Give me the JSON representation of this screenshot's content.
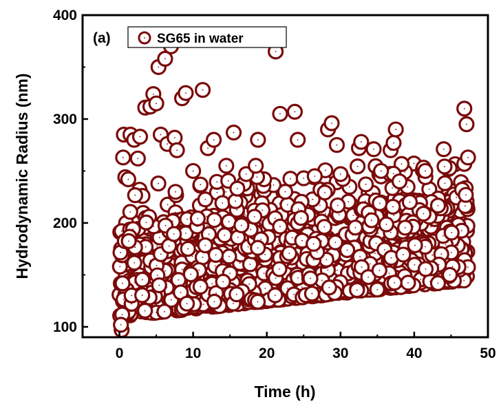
{
  "chart_data": {
    "type": "scatter",
    "panel_label": "(a)",
    "xlabel": "Time (h)",
    "ylabel": "Hydrodynamic Radius (nm)",
    "xlim": [
      -5,
      50
    ],
    "ylim": [
      90,
      400
    ],
    "xticks": [
      0,
      10,
      20,
      30,
      40,
      50
    ],
    "yticks": [
      100,
      200,
      300,
      400
    ],
    "legend": {
      "position": "top-left",
      "entries": [
        "SG65 in water"
      ]
    },
    "marker": {
      "shape": "open-circle",
      "color": "#7a0a0a"
    },
    "series": [
      {
        "name": "SG65 in water",
        "description": "dense cloud of repeated DLS measurements; baseline rises from ~120 nm at t=0 to ~160 nm at t=47 h with outliers up to ~370 nm",
        "time_range": [
          0,
          47.3
        ],
        "band_low_start": 110,
        "band_low_end": 145,
        "band_high_start": 200,
        "band_high_end": 230,
        "outliers": [
          [
            0.3,
            97
          ],
          [
            0.2,
            102
          ],
          [
            0.5,
            263
          ],
          [
            0.6,
            285
          ],
          [
            0.8,
            244
          ],
          [
            1.2,
            242
          ],
          [
            1.5,
            285
          ],
          [
            2.0,
            280
          ],
          [
            2.5,
            262
          ],
          [
            2.8,
            283
          ],
          [
            3.5,
            311
          ],
          [
            4.2,
            312
          ],
          [
            4.6,
            324
          ],
          [
            5.0,
            315
          ],
          [
            5.3,
            350
          ],
          [
            5.6,
            285
          ],
          [
            6.2,
            358
          ],
          [
            6.5,
            276
          ],
          [
            7.0,
            370
          ],
          [
            7.5,
            282
          ],
          [
            7.8,
            270
          ],
          [
            8.5,
            320
          ],
          [
            9.0,
            325
          ],
          [
            10.0,
            250
          ],
          [
            11.3,
            328
          ],
          [
            12.0,
            272
          ],
          [
            12.8,
            280
          ],
          [
            14.5,
            255
          ],
          [
            15.5,
            287
          ],
          [
            16.0,
            233
          ],
          [
            17.2,
            247
          ],
          [
            18.8,
            280
          ],
          [
            18.5,
            255
          ],
          [
            21.2,
            365
          ],
          [
            21.8,
            305
          ],
          [
            22.5,
            230
          ],
          [
            23.8,
            307
          ],
          [
            24.2,
            280
          ],
          [
            25.0,
            243
          ],
          [
            26.5,
            245
          ],
          [
            28.3,
            290
          ],
          [
            28.8,
            296
          ],
          [
            29.5,
            275
          ],
          [
            30.0,
            247
          ],
          [
            32.5,
            272
          ],
          [
            32.8,
            278
          ],
          [
            34.5,
            271
          ],
          [
            35.5,
            250
          ],
          [
            36.8,
            270
          ],
          [
            37.2,
            277
          ],
          [
            37.5,
            290
          ],
          [
            38.0,
            240
          ],
          [
            41.5,
            250
          ],
          [
            44.0,
            271
          ],
          [
            46.8,
            310
          ],
          [
            47.1,
            295
          ],
          [
            47.3,
            263
          ],
          [
            46.5,
            232
          ],
          [
            47.0,
            227
          ]
        ]
      }
    ]
  }
}
